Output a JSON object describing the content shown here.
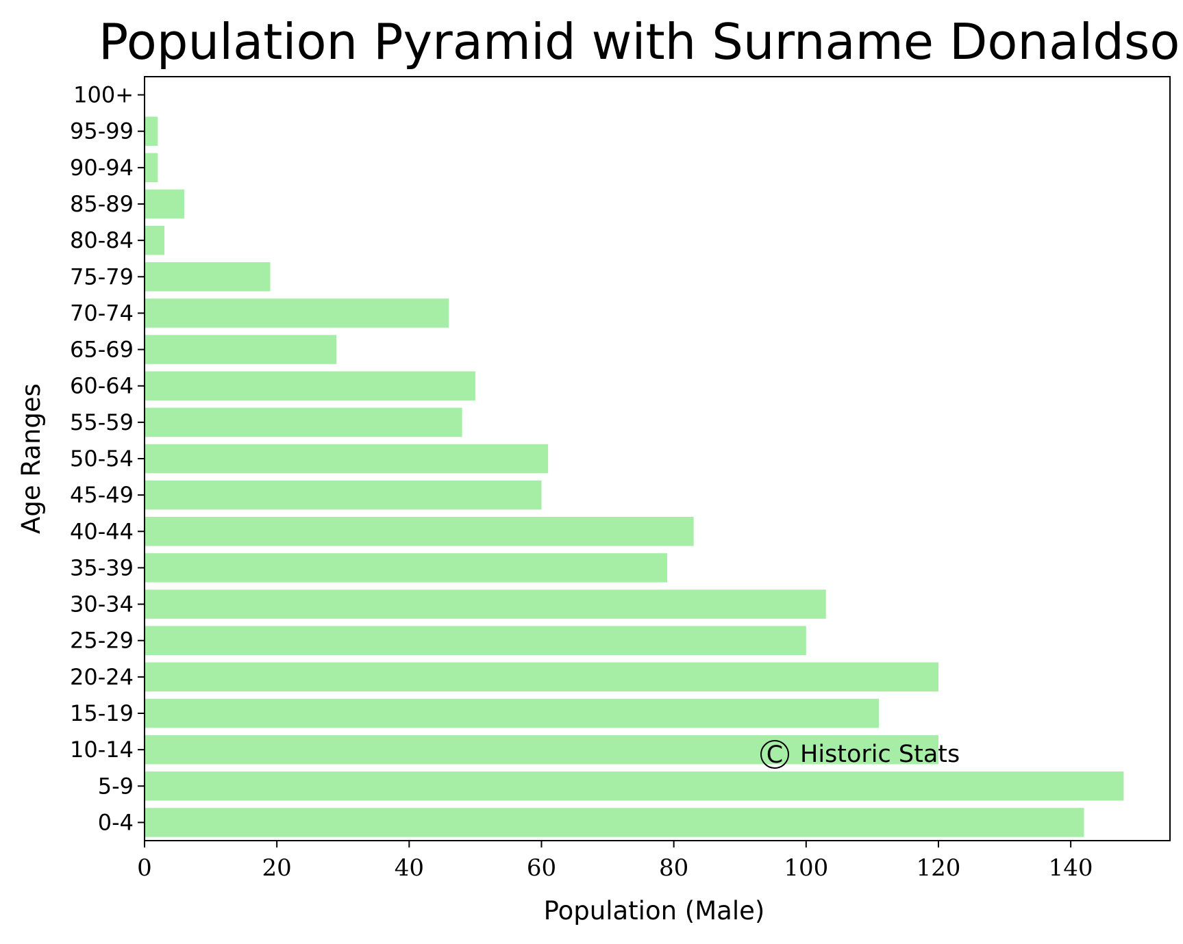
{
  "chart_data": {
    "type": "bar",
    "orientation": "horizontal",
    "title": "Population Pyramid with Surname Donaldson",
    "xlabel": "Population (Male)",
    "ylabel": "Age Ranges",
    "categories": [
      "0-4",
      "5-9",
      "10-14",
      "15-19",
      "20-24",
      "25-29",
      "30-34",
      "35-39",
      "40-44",
      "45-49",
      "50-54",
      "55-59",
      "60-64",
      "65-69",
      "70-74",
      "75-79",
      "80-84",
      "85-89",
      "90-94",
      "95-99",
      "100+"
    ],
    "values": [
      142,
      148,
      120,
      111,
      120,
      100,
      103,
      79,
      83,
      60,
      61,
      48,
      50,
      29,
      46,
      19,
      3,
      6,
      2,
      2,
      0
    ],
    "xlim": [
      0,
      155
    ],
    "xticks": [
      0,
      20,
      40,
      60,
      80,
      100,
      120,
      140
    ],
    "grid": false,
    "bar_color": "#a6eea6",
    "annotation": {
      "symbol": "C",
      "text": "Historic Stats"
    }
  }
}
